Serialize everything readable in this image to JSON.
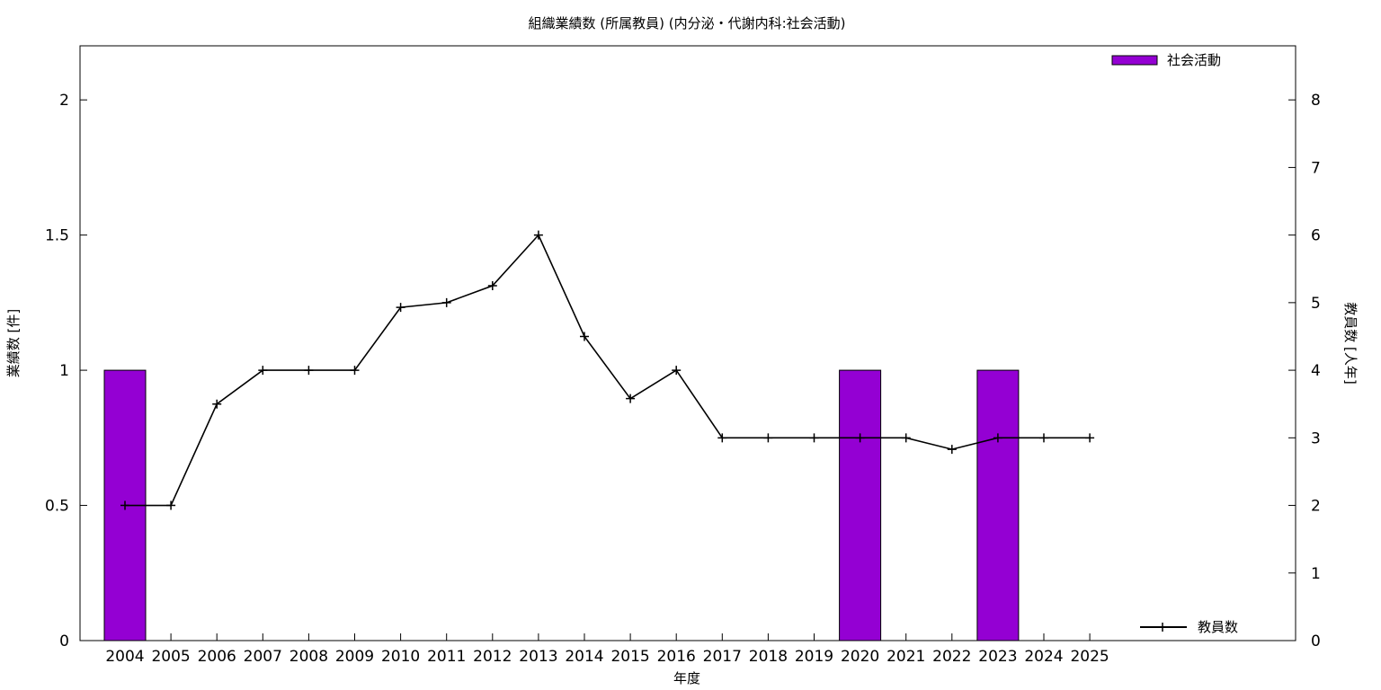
{
  "chart_data": {
    "type": "bar",
    "title": "組織業績数 (所属教員) (内分泌・代謝内科:社会活動)",
    "xlabel": "年度",
    "ylabel": "業績数 [件]",
    "y2label": "教員数 [人年]",
    "categories": [
      "2004",
      "2005",
      "2006",
      "2007",
      "2008",
      "2009",
      "2010",
      "2011",
      "2012",
      "2013",
      "2014",
      "2015",
      "2016",
      "2017",
      "2018",
      "2019",
      "2020",
      "2021",
      "2022",
      "2023",
      "2024",
      "2025"
    ],
    "ylim": [
      0,
      2.2
    ],
    "y2lim": [
      0,
      8.8
    ],
    "yticks": [
      "0",
      "0.5",
      "1",
      "1.5",
      "2"
    ],
    "y2ticks": [
      "0",
      "1",
      "2",
      "3",
      "4",
      "5",
      "6",
      "7",
      "8"
    ],
    "grid": false,
    "series": [
      {
        "name": "社会活動",
        "type": "bar",
        "axis": "left",
        "color": "#9400d3",
        "values": [
          1,
          0,
          0,
          0,
          0,
          0,
          0,
          0,
          0,
          0,
          0,
          0,
          0,
          0,
          0,
          0,
          1,
          0,
          0,
          1,
          0,
          0
        ]
      },
      {
        "name": "教員数",
        "type": "line",
        "axis": "right",
        "color": "#000000",
        "values": [
          2,
          2,
          3.5,
          4,
          4,
          4,
          4.93,
          5,
          5.25,
          6,
          4.5,
          3.58,
          4,
          3,
          3,
          3,
          3,
          3,
          2.83,
          3,
          3,
          3
        ]
      }
    ],
    "legend": {
      "bar_position": "top-right",
      "line_position": "bottom-right"
    }
  }
}
